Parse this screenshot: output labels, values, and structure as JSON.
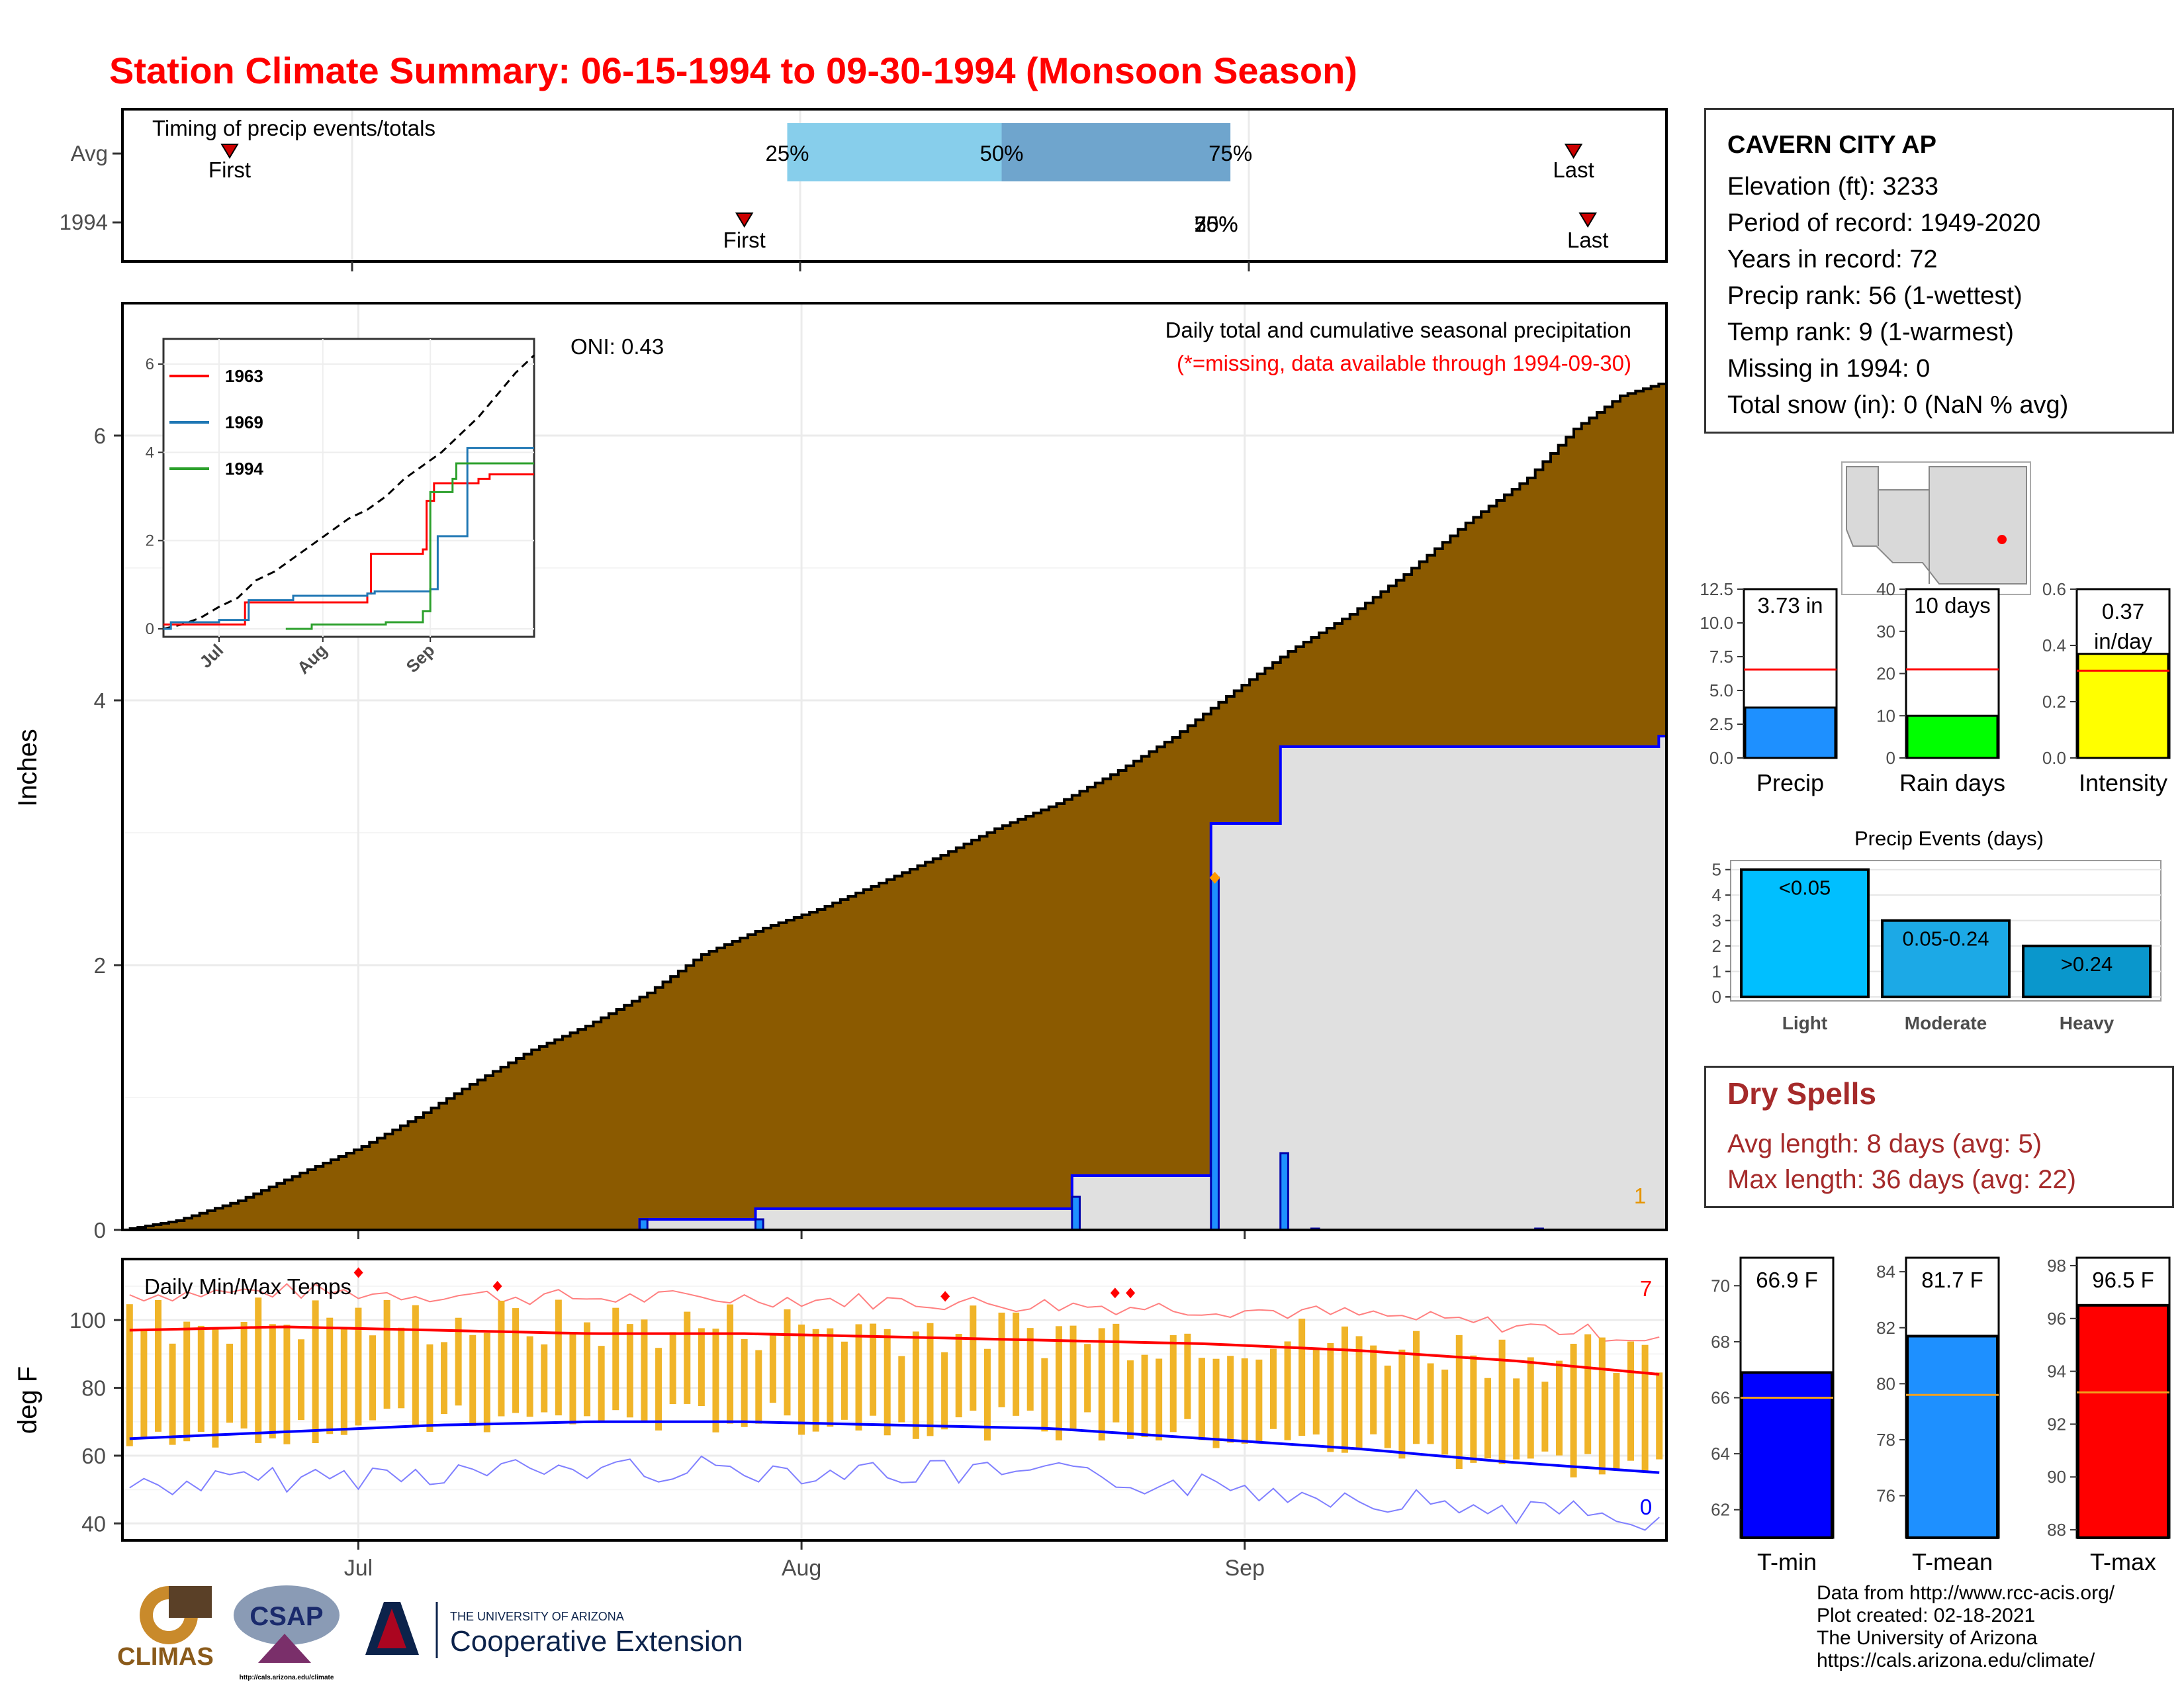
{
  "title": "Station Climate Summary: 06-15-1994 to 09-30-1994 (Monsoon Season)",
  "colors": {
    "title": "#ff0000",
    "cumulative_avg": "#8b5a00",
    "cumulative_year": "#e0e0e0",
    "year_line": "#0000ff",
    "daily_bar": "#1e90ff",
    "temp_bar": "#f0b428",
    "tmax_line": "#ff0000",
    "tmin_line": "#0000ff",
    "precip_bar": "#1e90ff",
    "raindays_bar": "#00ff00",
    "intensity_bar": "#ffff00",
    "dry_spells": "#a52a2a"
  },
  "timing": {
    "title": "Timing of precip events/totals",
    "rows": [
      "Avg",
      "1994"
    ],
    "first_label": "First",
    "last_label": "Last",
    "pct_labels": [
      "25%",
      "50%",
      "75%"
    ],
    "overlap_label_1994": "50%",
    "avg_first_date": "1994-06-22",
    "avg_last_date": "1994-09-24",
    "y1994_first_date": "1994-07-28",
    "y1994_last_date": "1994-09-25",
    "avg_p25_date": "1994-07-31",
    "avg_p50_date": "1994-08-15",
    "avg_p75_date": "1994-08-31",
    "y1994_pct_date": "1994-08-30"
  },
  "main": {
    "ylabel": "Inches",
    "oni": "ONI: 0.43",
    "subtitle": "Daily total and cumulative seasonal precipitation",
    "missing_note": "(*=missing, data available through 1994-09-30)",
    "corner_value": "1",
    "x_ticks": [
      "Jul",
      "Aug",
      "Sep"
    ],
    "y_ticks": [
      "0",
      "2",
      "4",
      "6"
    ]
  },
  "inset": {
    "legend": [
      "1963",
      "1969",
      "1994"
    ],
    "legend_colors": [
      "#ff0000",
      "#1f77b4",
      "#2ca02c"
    ],
    "x_ticks": [
      "Jul",
      "Aug",
      "Sep"
    ],
    "y_ticks": [
      "0",
      "2",
      "4",
      "6"
    ]
  },
  "temps": {
    "title": "Daily Min/Max Temps",
    "ylabel": "deg F",
    "corner_top": "7",
    "corner_bottom": "0",
    "y_ticks": [
      "40",
      "60",
      "80",
      "100"
    ],
    "x_ticks": [
      "Jul",
      "Aug",
      "Sep"
    ]
  },
  "station": {
    "name": "CAVERN CITY AP",
    "lines": [
      "Elevation (ft): 3233",
      "Period of record: 1949-2020",
      "Years in record: 72",
      "Precip rank: 56 (1-wettest)",
      "Temp rank: 9 (1-warmest)",
      "Missing in 1994: 0",
      "Total snow (in): 0 (NaN % avg)"
    ]
  },
  "mini_bars": [
    {
      "label": "Precip",
      "value_text": "3.73 in",
      "value": 3.73,
      "avg": 6.55,
      "ymax": 12.5,
      "ticks": [
        "0.0",
        "2.5",
        "5.0",
        "7.5",
        "10.0",
        "12.5"
      ],
      "color": "#1e90ff"
    },
    {
      "label": "Rain days",
      "value_text": "10 days",
      "value": 10,
      "avg": 21,
      "ymax": 40,
      "ticks": [
        "0",
        "10",
        "20",
        "30",
        "40"
      ],
      "color": "#00ff00"
    },
    {
      "label": "Intensity",
      "value_text": "0.37 in/day",
      "value": 0.37,
      "avg": 0.31,
      "ymax": 0.6,
      "ticks": [
        "0.0",
        "0.2",
        "0.4",
        "0.6"
      ],
      "color": "#ffff00"
    }
  ],
  "events": {
    "title": "Precip Events (days)",
    "categories": [
      "Light",
      "Moderate",
      "Heavy"
    ],
    "bar_labels": [
      "<0.05",
      "0.05-0.24",
      ">0.24"
    ],
    "values": [
      5,
      3,
      2
    ],
    "colors": [
      "#00bfff",
      "#1ca9e6",
      "#0a97cc"
    ],
    "y_ticks": [
      "0",
      "1",
      "2",
      "3",
      "4",
      "5"
    ]
  },
  "dry_spells": {
    "title": "Dry Spells",
    "avg_length": "Avg length: 8 days (avg: 5)",
    "max_length": "Max length: 36 days (avg: 22)"
  },
  "temp_bars": [
    {
      "label": "T-min",
      "value_text": "66.9 F",
      "value": 66.9,
      "avg": 66.0,
      "ymin": 61,
      "ymax": 71,
      "ticks": [
        "62",
        "64",
        "66",
        "68",
        "70"
      ],
      "color": "#0000ff"
    },
    {
      "label": "T-mean",
      "value_text": "81.7 F",
      "value": 81.7,
      "avg": 79.6,
      "ymin": 74.5,
      "ymax": 84.5,
      "ticks": [
        "76",
        "78",
        "80",
        "82",
        "84"
      ],
      "color": "#1e90ff"
    },
    {
      "label": "T-max",
      "value_text": "96.5 F",
      "value": 96.5,
      "avg": 93.2,
      "ymin": 87.7,
      "ymax": 98.3,
      "ticks": [
        "88",
        "90",
        "92",
        "94",
        "96",
        "98"
      ],
      "color": "#ff0000"
    }
  ],
  "logos": {
    "climas": "CLIMAS",
    "csap": "CSAP",
    "csap_url": "http://cals.arizona.edu/climate",
    "ua_small": "THE UNIVERSITY OF ARIZONA",
    "ua_big": "Cooperative Extension"
  },
  "credits": [
    "Data from http://www.rcc-acis.org/",
    "Plot created: 02-18-2021",
    "The University of Arizona",
    "https://cals.arizona.edu/climate/"
  ],
  "chart_data": [
    {
      "type": "area",
      "title": "Daily total and cumulative seasonal precipitation",
      "ylabel": "Inches",
      "ylim": [
        0,
        7
      ],
      "x_range": [
        "1994-06-15",
        "1994-09-30"
      ],
      "series": [
        {
          "name": "Average cumulative",
          "points": [
            [
              0,
              0
            ],
            [
              7,
              0.07
            ],
            [
              15,
              0.22
            ],
            [
              23,
              0.43
            ],
            [
              31,
              0.63
            ],
            [
              38,
              0.85
            ],
            [
              45,
              1.1
            ],
            [
              53,
              1.36
            ],
            [
              60,
              1.54
            ],
            [
              68,
              1.79
            ],
            [
              75,
              2.08
            ],
            [
              83,
              2.28
            ],
            [
              90,
              2.42
            ],
            [
              98,
              2.62
            ],
            [
              106,
              2.83
            ],
            [
              113,
              3.03
            ],
            [
              121,
              3.22
            ],
            [
              129,
              3.47
            ],
            [
              136,
              3.72
            ],
            [
              143,
              4.03
            ],
            [
              151,
              4.37
            ],
            [
              159,
              4.65
            ],
            [
              166,
              4.95
            ],
            [
              174,
              5.34
            ],
            [
              182,
              5.68
            ],
            [
              188,
              6.05
            ],
            [
              194,
              6.3
            ],
            [
              199,
              6.39
            ]
          ]
        },
        {
          "name": "1994 cumulative",
          "points": [
            [
              0,
              0
            ],
            [
              67,
              0.08
            ],
            [
              82,
              0.16
            ],
            [
              123,
              0.41
            ],
            [
              141,
              3.07
            ],
            [
              150,
              3.65
            ],
            [
              199,
              3.73
            ]
          ]
        },
        {
          "name": "1994 daily",
          "points": [
            [
              67,
              0.08
            ],
            [
              82,
              0.08
            ],
            [
              123,
              0.25
            ],
            [
              141,
              2.66
            ],
            [
              150,
              0.58
            ],
            [
              154,
              0.01
            ],
            [
              183,
              0.01
            ]
          ]
        }
      ]
    },
    {
      "type": "line",
      "title": "Daily Min/Max Temps",
      "ylabel": "deg F",
      "ylim": [
        35,
        118
      ],
      "series": [
        {
          "name": "Average max",
          "points": [
            [
              0,
              97
            ],
            [
              20,
              98
            ],
            [
              40,
              97
            ],
            [
              60,
              96
            ],
            [
              80,
              96
            ],
            [
              100,
              95
            ],
            [
              120,
              94
            ],
            [
              140,
              93
            ],
            [
              160,
              91
            ],
            [
              180,
              88
            ],
            [
              199,
              84
            ]
          ]
        },
        {
          "name": "Average min",
          "points": [
            [
              0,
              65
            ],
            [
              20,
              67
            ],
            [
              40,
              69
            ],
            [
              60,
              70
            ],
            [
              80,
              70
            ],
            [
              100,
              69
            ],
            [
              120,
              68
            ],
            [
              140,
              65
            ],
            [
              160,
              62
            ],
            [
              180,
              58
            ],
            [
              199,
              55
            ]
          ]
        }
      ]
    }
  ]
}
